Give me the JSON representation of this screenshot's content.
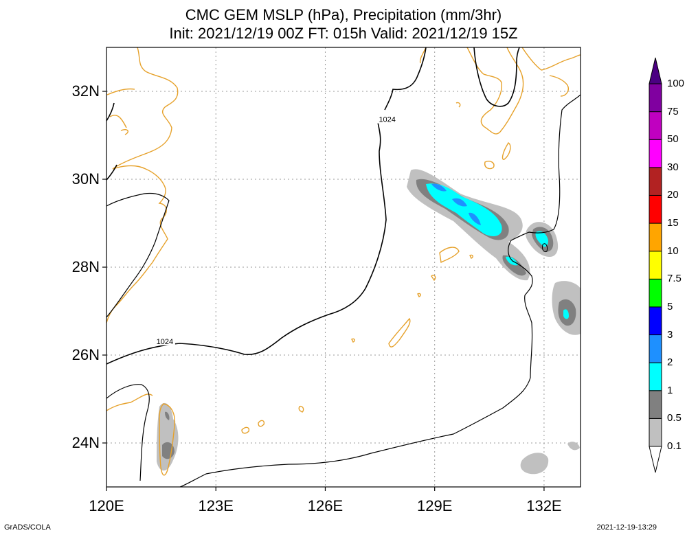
{
  "title": {
    "line1": "CMC GEM MSLP (hPa), Precipitation (mm/3hr)",
    "line2": "Init: 2021/12/19 00Z  FT: 015h  Valid: 2021/12/19 15Z"
  },
  "map": {
    "lon_range": [
      120,
      133
    ],
    "lat_range": [
      23,
      33
    ],
    "lat_ticks": [
      {
        "value": 32,
        "label": "32N"
      },
      {
        "value": 30,
        "label": "30N"
      },
      {
        "value": 28,
        "label": "28N"
      },
      {
        "value": 26,
        "label": "26N"
      },
      {
        "value": 24,
        "label": "24N"
      }
    ],
    "lon_ticks": [
      {
        "value": 120,
        "label": "120E"
      },
      {
        "value": 123,
        "label": "123E"
      },
      {
        "value": 126,
        "label": "126E"
      },
      {
        "value": 129,
        "label": "129E"
      },
      {
        "value": 132,
        "label": "132E"
      }
    ],
    "isobar_labels": [
      {
        "text": "1024",
        "lon": 127.7,
        "lat": 31.35
      },
      {
        "text": "1024",
        "lon": 121.6,
        "lat": 26.3
      }
    ],
    "coastline_color": "#e6a12a",
    "grid_style": "dotted"
  },
  "colorbar": {
    "levels": [
      "0.1",
      "0.5",
      "1",
      "2",
      "3",
      "5",
      "7.5",
      "10",
      "15",
      "20",
      "30",
      "50",
      "75",
      "100"
    ],
    "colors": [
      "#ffffff",
      "#c0c0c0",
      "#808080",
      "#00ffff",
      "#1e90ff",
      "#0000ff",
      "#00ff00",
      "#ffff00",
      "#ffa500",
      "#ff0000",
      "#b22222",
      "#ff00ff",
      "#c000c0",
      "#8000a0",
      "#4b0082"
    ]
  },
  "footer": {
    "left": "GrADS/COLA",
    "right": "2021-12-19-13:29"
  }
}
